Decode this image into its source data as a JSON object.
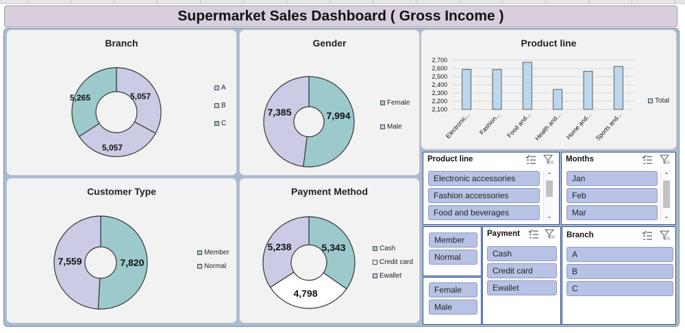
{
  "dashboard": {
    "title": "Supermarket Sales Dashboard ( Gross Income )"
  },
  "colors": {
    "series_a": "#cbcbe6",
    "series_b": "#9ccacc",
    "series_c": "#ffffff",
    "bar": "#bcd7ee",
    "slicer_item": "#b8c2e4"
  },
  "branch": {
    "title": "Branch",
    "labels": {
      "a": "5,057",
      "b": "5,057",
      "c": "5,265"
    },
    "legend": [
      "A",
      "B",
      "C"
    ]
  },
  "gender": {
    "title": "Gender",
    "labels": {
      "female": "7,994",
      "male": "7,385"
    },
    "legend": [
      "Female",
      "Male"
    ]
  },
  "customer_type": {
    "title": "Customer Type",
    "labels": {
      "member": "7,820",
      "normal": "7,559"
    },
    "legend": [
      "Member",
      "Normal"
    ]
  },
  "payment_method": {
    "title": "Payment Method",
    "labels": {
      "cash": "5,343",
      "credit_card": "4,798",
      "ewallet": "5,238"
    },
    "legend": [
      "Cash",
      "Credit card",
      "Ewallet"
    ]
  },
  "product_line_chart": {
    "title": "Product line",
    "legend": "Total",
    "yticks": [
      "2,700",
      "2,600",
      "2,500",
      "2,400",
      "2,300",
      "2,200",
      "2,100"
    ],
    "categories": [
      "Electronic...",
      "Fashion...",
      "Food and...",
      "Health and...",
      "Home and...",
      "Sports and..."
    ]
  },
  "chart_data": [
    {
      "type": "pie",
      "title": "Branch",
      "categories": [
        "A",
        "B",
        "C"
      ],
      "values": [
        5057,
        5057,
        5265
      ]
    },
    {
      "type": "pie",
      "title": "Gender",
      "categories": [
        "Female",
        "Male"
      ],
      "values": [
        7994,
        7385
      ]
    },
    {
      "type": "pie",
      "title": "Customer Type",
      "categories": [
        "Member",
        "Normal"
      ],
      "values": [
        7820,
        7559
      ]
    },
    {
      "type": "pie",
      "title": "Payment Method",
      "categories": [
        "Cash",
        "Credit card",
        "Ewallet"
      ],
      "values": [
        5343,
        4798,
        5238
      ]
    },
    {
      "type": "bar",
      "title": "Product line",
      "categories": [
        "Electronic...",
        "Fashion...",
        "Food and...",
        "Health and...",
        "Home and...",
        "Sports and..."
      ],
      "series": [
        {
          "name": "Total",
          "values": [
            2588,
            2586,
            2674,
            2343,
            2565,
            2624
          ]
        }
      ],
      "ylim": [
        2100,
        2700
      ]
    }
  ],
  "slicers": {
    "product_line": {
      "title": "Product line",
      "items": [
        "Electronic accessories",
        "Fashion accessories",
        "Food and beverages"
      ]
    },
    "months": {
      "title": "Months",
      "items": [
        "Jan",
        "Feb",
        "Mar"
      ]
    },
    "customer_type": {
      "items": [
        "Member",
        "Normal"
      ]
    },
    "gender": {
      "items": [
        "Female",
        "Male"
      ]
    },
    "payment": {
      "title": "Payment",
      "items": [
        "Cash",
        "Credit card",
        "Ewallet"
      ]
    },
    "branch": {
      "title": "Branch",
      "items": [
        "A",
        "B",
        "C"
      ]
    }
  }
}
